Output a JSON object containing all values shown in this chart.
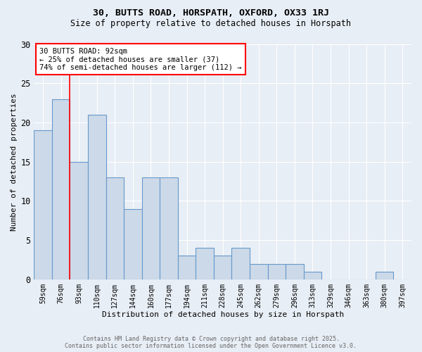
{
  "title1": "30, BUTTS ROAD, HORSPATH, OXFORD, OX33 1RJ",
  "title2": "Size of property relative to detached houses in Horspath",
  "xlabel": "Distribution of detached houses by size in Horspath",
  "ylabel": "Number of detached properties",
  "categories": [
    "59sqm",
    "76sqm",
    "93sqm",
    "110sqm",
    "127sqm",
    "144sqm",
    "160sqm",
    "177sqm",
    "194sqm",
    "211sqm",
    "228sqm",
    "245sqm",
    "262sqm",
    "279sqm",
    "296sqm",
    "313sqm",
    "329sqm",
    "346sqm",
    "363sqm",
    "380sqm",
    "397sqm"
  ],
  "values": [
    19,
    23,
    15,
    21,
    13,
    9,
    13,
    13,
    3,
    4,
    3,
    4,
    2,
    2,
    2,
    1,
    0,
    0,
    0,
    1,
    0
  ],
  "bar_color": "#ccd9e8",
  "bar_edge_color": "#6699cc",
  "property_line_x": 1.5,
  "annotation_text": "30 BUTTS ROAD: 92sqm\n← 25% of detached houses are smaller (37)\n74% of semi-detached houses are larger (112) →",
  "annotation_box_color": "white",
  "annotation_box_edge_color": "red",
  "vline_color": "red",
  "ylim": [
    0,
    30
  ],
  "yticks": [
    0,
    5,
    10,
    15,
    20,
    25,
    30
  ],
  "background_color": "#e8eef5",
  "grid_color": "white",
  "footer_line1": "Contains HM Land Registry data © Crown copyright and database right 2025.",
  "footer_line2": "Contains public sector information licensed under the Open Government Licence v3.0."
}
